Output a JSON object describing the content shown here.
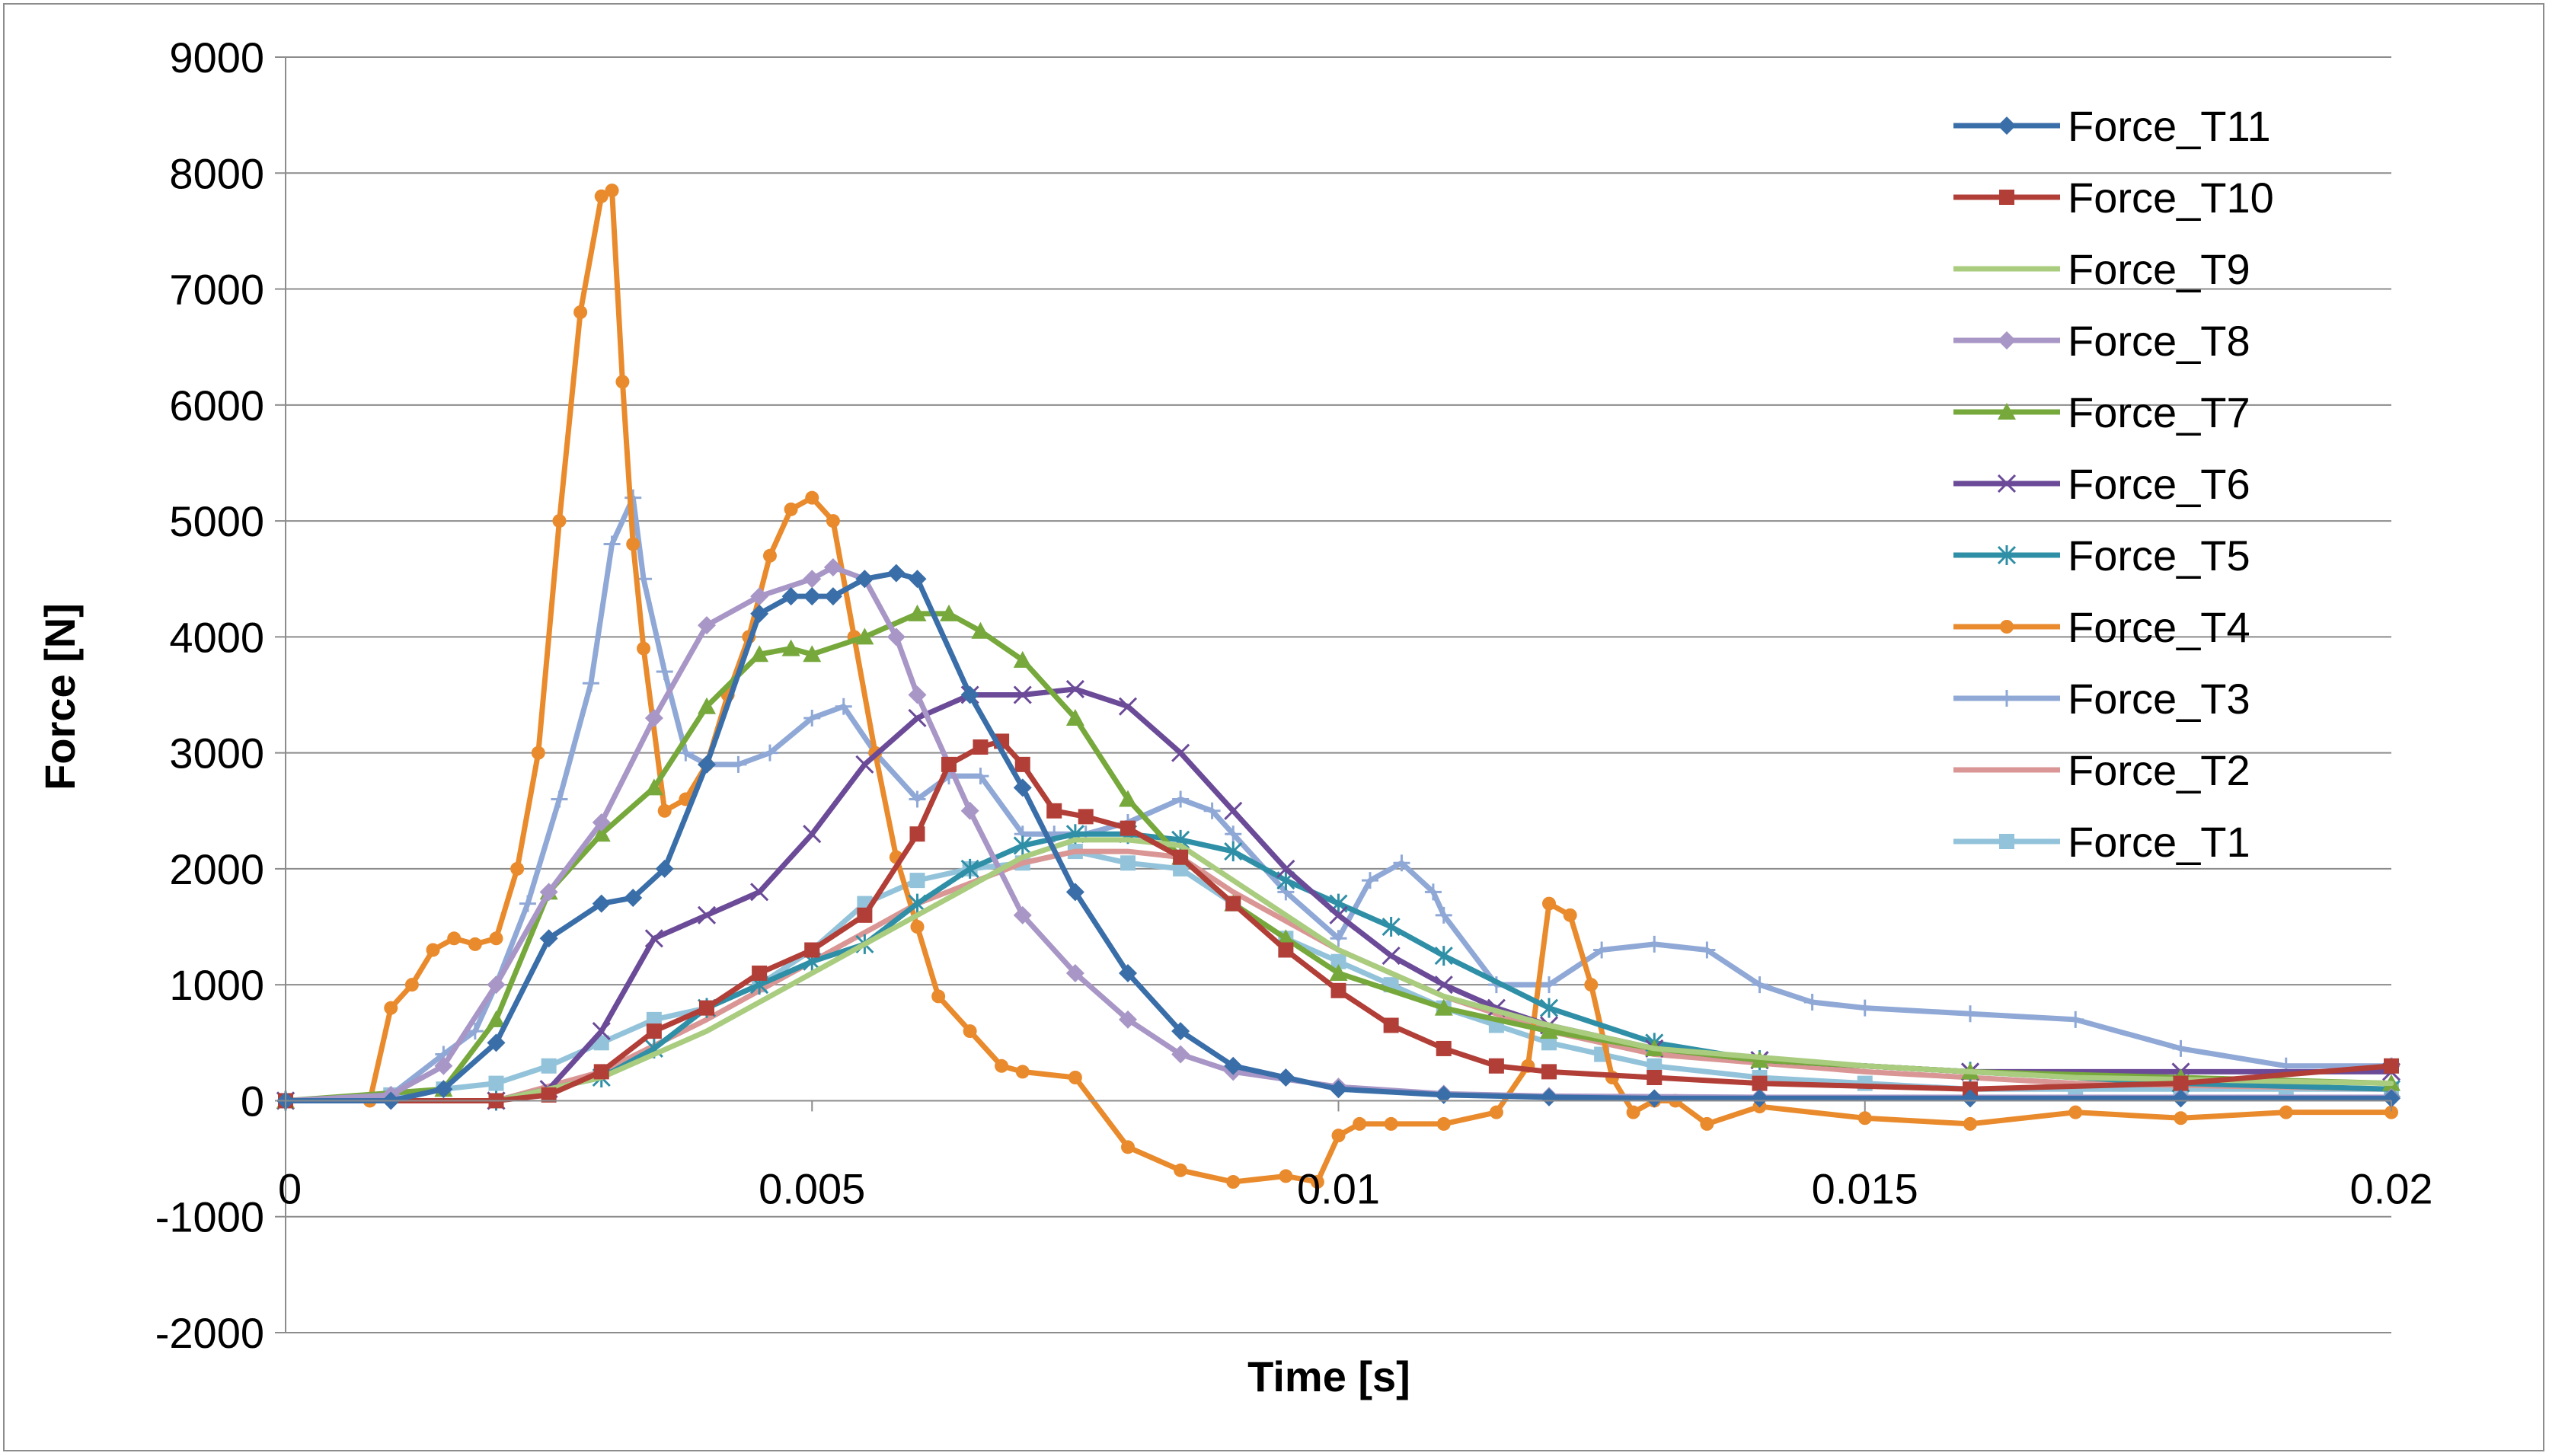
{
  "chart_data": {
    "type": "line",
    "title": "",
    "xlabel": "Time [s]",
    "ylabel": "Force [N]",
    "xlim": [
      0,
      0.02
    ],
    "ylim": [
      -2000,
      9000
    ],
    "x_ticks": [
      0,
      0.005,
      0.01,
      0.015,
      0.02
    ],
    "x_tick_labels": [
      "0",
      "0.005",
      "0.01",
      "0.015",
      "0.02"
    ],
    "y_ticks": [
      -2000,
      -1000,
      0,
      1000,
      2000,
      3000,
      4000,
      5000,
      6000,
      7000,
      8000,
      9000
    ],
    "y_tick_labels": [
      "-2000",
      "-1000",
      "0",
      "1000",
      "2000",
      "3000",
      "4000",
      "5000",
      "6000",
      "7000",
      "8000",
      "9000"
    ],
    "grid": "horizontal",
    "legend_position": "top-right",
    "series": [
      {
        "name": "Force_T11",
        "color": "#3a6ea8",
        "marker": "diamond",
        "x": [
          0,
          0.001,
          0.0015,
          0.002,
          0.0025,
          0.003,
          0.0033,
          0.0036,
          0.004,
          0.0045,
          0.0048,
          0.005,
          0.0052,
          0.0055,
          0.0058,
          0.006,
          0.0065,
          0.007,
          0.0075,
          0.008,
          0.0085,
          0.009,
          0.0095,
          0.01,
          0.011,
          0.012,
          0.013,
          0.014,
          0.016,
          0.018,
          0.02
        ],
        "y": [
          0,
          0,
          100,
          500,
          1400,
          1700,
          1750,
          2000,
          2900,
          4200,
          4350,
          4350,
          4350,
          4500,
          4550,
          4500,
          3500,
          2700,
          1800,
          1100,
          600,
          300,
          200,
          100,
          50,
          30,
          20,
          20,
          20,
          20,
          20
        ]
      },
      {
        "name": "Force_T10",
        "color": "#b13e37",
        "marker": "square",
        "x": [
          0,
          0.002,
          0.0025,
          0.003,
          0.0035,
          0.004,
          0.0045,
          0.005,
          0.0055,
          0.006,
          0.0063,
          0.0066,
          0.0068,
          0.007,
          0.0073,
          0.0076,
          0.008,
          0.0085,
          0.009,
          0.0095,
          0.01,
          0.0105,
          0.011,
          0.0115,
          0.012,
          0.013,
          0.014,
          0.016,
          0.018,
          0.02
        ],
        "y": [
          0,
          0,
          50,
          250,
          600,
          800,
          1100,
          1300,
          1600,
          2300,
          2900,
          3050,
          3100,
          2900,
          2500,
          2450,
          2350,
          2100,
          1700,
          1300,
          950,
          650,
          450,
          300,
          250,
          200,
          150,
          100,
          150,
          300
        ]
      },
      {
        "name": "Force_T9",
        "color": "#a9cc7f",
        "marker": "none",
        "x": [
          0,
          0.002,
          0.003,
          0.004,
          0.005,
          0.006,
          0.007,
          0.0075,
          0.008,
          0.0085,
          0.009,
          0.01,
          0.011,
          0.012,
          0.013,
          0.015,
          0.017,
          0.02
        ],
        "y": [
          0,
          0,
          200,
          600,
          1100,
          1600,
          2100,
          2250,
          2250,
          2200,
          1900,
          1300,
          900,
          650,
          450,
          300,
          200,
          150
        ]
      },
      {
        "name": "Force_T8",
        "color": "#a896c6",
        "marker": "diamond",
        "x": [
          0,
          0.001,
          0.0015,
          0.002,
          0.0025,
          0.003,
          0.0035,
          0.004,
          0.0045,
          0.005,
          0.0052,
          0.0055,
          0.0058,
          0.006,
          0.0065,
          0.007,
          0.0075,
          0.008,
          0.0085,
          0.009,
          0.01,
          0.011,
          0.012,
          0.014,
          0.016,
          0.018,
          0.02
        ],
        "y": [
          0,
          50,
          300,
          1000,
          1800,
          2400,
          3300,
          4100,
          4350,
          4500,
          4600,
          4500,
          4000,
          3500,
          2500,
          1600,
          1100,
          700,
          400,
          250,
          120,
          60,
          40,
          30,
          30,
          30,
          30
        ]
      },
      {
        "name": "Force_T7",
        "color": "#76a83c",
        "marker": "triangle",
        "x": [
          0,
          0.0015,
          0.002,
          0.0025,
          0.003,
          0.0035,
          0.004,
          0.0045,
          0.0048,
          0.005,
          0.0055,
          0.006,
          0.0063,
          0.0066,
          0.007,
          0.0075,
          0.008,
          0.0085,
          0.009,
          0.0095,
          0.01,
          0.011,
          0.012,
          0.013,
          0.014,
          0.016,
          0.018,
          0.02
        ],
        "y": [
          0,
          100,
          700,
          1800,
          2300,
          2700,
          3400,
          3850,
          3900,
          3850,
          4000,
          4200,
          4200,
          4050,
          3800,
          3300,
          2600,
          2100,
          1700,
          1400,
          1100,
          800,
          600,
          450,
          350,
          250,
          200,
          150
        ]
      },
      {
        "name": "Force_T6",
        "color": "#6b4a98",
        "marker": "x",
        "x": [
          0,
          0.002,
          0.0025,
          0.003,
          0.0035,
          0.004,
          0.0045,
          0.005,
          0.0055,
          0.006,
          0.0065,
          0.007,
          0.0075,
          0.008,
          0.0085,
          0.009,
          0.0095,
          0.01,
          0.0105,
          0.011,
          0.0115,
          0.012,
          0.013,
          0.014,
          0.016,
          0.018,
          0.02
        ],
        "y": [
          0,
          0,
          100,
          600,
          1400,
          1600,
          1800,
          2300,
          2900,
          3300,
          3500,
          3500,
          3550,
          3400,
          3000,
          2500,
          2000,
          1600,
          1250,
          1000,
          800,
          650,
          450,
          350,
          250,
          250,
          250
        ]
      },
      {
        "name": "Force_T5",
        "color": "#2f8fa6",
        "marker": "asterisk",
        "x": [
          0,
          0.002,
          0.003,
          0.0035,
          0.004,
          0.0045,
          0.005,
          0.0055,
          0.006,
          0.0065,
          0.007,
          0.0075,
          0.008,
          0.0085,
          0.009,
          0.0095,
          0.01,
          0.0105,
          0.011,
          0.012,
          0.013,
          0.014,
          0.016,
          0.018,
          0.02
        ],
        "y": [
          0,
          0,
          200,
          450,
          800,
          1000,
          1200,
          1350,
          1700,
          2000,
          2200,
          2300,
          2300,
          2250,
          2150,
          1900,
          1700,
          1500,
          1250,
          800,
          500,
          350,
          250,
          150,
          100
        ]
      },
      {
        "name": "Force_T4",
        "color": "#e98a2c",
        "marker": "circle",
        "x": [
          0,
          0.0008,
          0.001,
          0.0012,
          0.0014,
          0.0016,
          0.0018,
          0.002,
          0.0022,
          0.0024,
          0.0026,
          0.0028,
          0.003,
          0.0031,
          0.0032,
          0.0033,
          0.0034,
          0.0036,
          0.0038,
          0.004,
          0.0042,
          0.0044,
          0.0046,
          0.0048,
          0.005,
          0.0052,
          0.0054,
          0.0056,
          0.0058,
          0.006,
          0.0062,
          0.0065,
          0.0068,
          0.007,
          0.0075,
          0.008,
          0.0085,
          0.009,
          0.0095,
          0.0098,
          0.01,
          0.0102,
          0.0105,
          0.011,
          0.0115,
          0.0118,
          0.012,
          0.0122,
          0.0124,
          0.0126,
          0.0128,
          0.013,
          0.0132,
          0.0135,
          0.014,
          0.015,
          0.016,
          0.017,
          0.018,
          0.019,
          0.02
        ],
        "y": [
          0,
          0,
          800,
          1000,
          1300,
          1400,
          1350,
          1400,
          2000,
          3000,
          5000,
          6800,
          7800,
          7850,
          6200,
          4800,
          3900,
          2500,
          2600,
          2900,
          3500,
          4000,
          4700,
          5100,
          5200,
          5000,
          4000,
          3000,
          2100,
          1500,
          900,
          600,
          300,
          250,
          200,
          -400,
          -600,
          -700,
          -650,
          -700,
          -300,
          -200,
          -200,
          -200,
          -100,
          300,
          1700,
          1600,
          1000,
          200,
          -100,
          0,
          0,
          -200,
          -50,
          -150,
          -200,
          -100,
          -150,
          -100,
          -100
        ]
      },
      {
        "name": "Force_T3",
        "color": "#8fa8d6",
        "marker": "plus",
        "x": [
          0,
          0.001,
          0.0015,
          0.0018,
          0.002,
          0.0023,
          0.0026,
          0.0029,
          0.0031,
          0.0033,
          0.0034,
          0.0036,
          0.0038,
          0.004,
          0.0043,
          0.0046,
          0.005,
          0.0053,
          0.0056,
          0.006,
          0.0063,
          0.0066,
          0.007,
          0.0073,
          0.0076,
          0.008,
          0.0085,
          0.0088,
          0.009,
          0.0095,
          0.01,
          0.0103,
          0.0106,
          0.0109,
          0.011,
          0.0115,
          0.012,
          0.0125,
          0.013,
          0.0135,
          0.014,
          0.0145,
          0.015,
          0.016,
          0.017,
          0.018,
          0.019,
          0.02
        ],
        "y": [
          0,
          50,
          400,
          600,
          1000,
          1700,
          2600,
          3600,
          4800,
          5200,
          4500,
          3700,
          3000,
          2900,
          2900,
          3000,
          3300,
          3400,
          3000,
          2600,
          2800,
          2800,
          2300,
          2300,
          2300,
          2400,
          2600,
          2500,
          2300,
          1800,
          1400,
          1900,
          2050,
          1800,
          1600,
          1000,
          1000,
          1300,
          1350,
          1300,
          1000,
          850,
          800,
          750,
          700,
          450,
          300,
          300
        ]
      },
      {
        "name": "Force_T2",
        "color": "#d99694",
        "marker": "none",
        "x": [
          0,
          0.002,
          0.003,
          0.004,
          0.005,
          0.006,
          0.007,
          0.0075,
          0.008,
          0.0085,
          0.009,
          0.01,
          0.011,
          0.012,
          0.013,
          0.015,
          0.017,
          0.02
        ],
        "y": [
          0,
          0,
          250,
          700,
          1200,
          1700,
          2050,
          2150,
          2150,
          2100,
          1800,
          1300,
          900,
          600,
          400,
          250,
          150,
          100
        ]
      },
      {
        "name": "Force_T1",
        "color": "#93c3da",
        "marker": "square",
        "x": [
          0,
          0.001,
          0.0015,
          0.002,
          0.0025,
          0.003,
          0.0035,
          0.004,
          0.0045,
          0.005,
          0.0055,
          0.006,
          0.0065,
          0.007,
          0.0075,
          0.008,
          0.0085,
          0.009,
          0.0095,
          0.01,
          0.0105,
          0.011,
          0.0115,
          0.012,
          0.0125,
          0.013,
          0.014,
          0.015,
          0.016,
          0.017,
          0.018,
          0.019,
          0.02
        ],
        "y": [
          0,
          50,
          100,
          150,
          300,
          500,
          700,
          800,
          1000,
          1300,
          1700,
          1900,
          2000,
          2050,
          2150,
          2050,
          2000,
          1700,
          1400,
          1200,
          1000,
          800,
          650,
          500,
          400,
          300,
          200,
          150,
          100,
          100,
          100,
          100,
          100
        ]
      }
    ]
  }
}
